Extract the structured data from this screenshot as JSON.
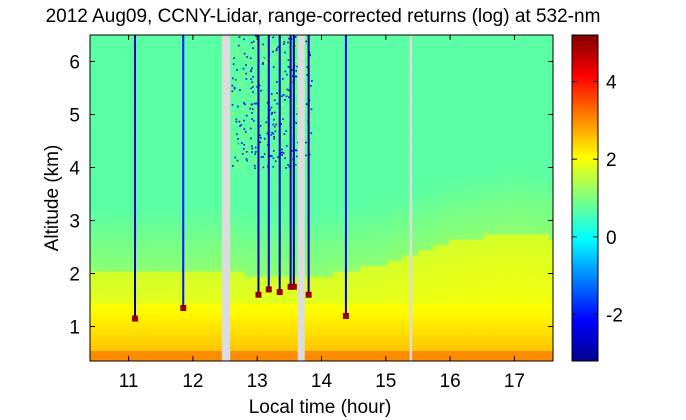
{
  "chart_data": [
    {
      "type": "heatmap",
      "title": "2012 Aug09, CCNY-Lidar, range-corrected returns (log) at 532-nm",
      "xlabel": "Local time (hour)",
      "ylabel": "Altitude (km)",
      "xlim": [
        10.4,
        17.6
      ],
      "ylim": [
        0.35,
        6.5
      ],
      "xticks": [
        "11",
        "12",
        "13",
        "14",
        "15",
        "16",
        "17"
      ],
      "yticks": [
        "1",
        "2",
        "3",
        "4",
        "5",
        "6"
      ],
      "colorbar": {
        "range": [
          -3.2,
          5.2
        ],
        "ticks": [
          "-2",
          "0",
          "2",
          "4"
        ],
        "colormap": "jet"
      },
      "data_gaps_hours": [
        [
          12.45,
          12.58
        ],
        [
          13.63,
          13.74
        ],
        [
          15.37,
          15.41
        ]
      ],
      "layers": [
        {
          "name": "background_above_boundary_layer",
          "value": 0.7
        },
        {
          "name": "residual_layer_1p5_to_2km",
          "value": 1.7
        },
        {
          "name": "boundary_layer_below_1p5km",
          "value": 2.5
        },
        {
          "name": "near_surface",
          "value": 3.0
        }
      ],
      "boundary_layer_top_km": [
        {
          "t": 10.4,
          "h": 2.02
        },
        {
          "t": 11.0,
          "h": 2.0
        },
        {
          "t": 12.0,
          "h": 2.05
        },
        {
          "t": 12.45,
          "h": 2.1
        },
        {
          "t": 13.0,
          "h": 1.95
        },
        {
          "t": 14.0,
          "h": 1.95
        },
        {
          "t": 15.0,
          "h": 2.2
        },
        {
          "t": 16.0,
          "h": 2.6
        },
        {
          "t": 17.0,
          "h": 2.8
        },
        {
          "t": 17.55,
          "h": 2.7
        }
      ],
      "cloud_columns": [
        {
          "t": 11.1,
          "base_km": 1.15,
          "signal": -2.8
        },
        {
          "t": 11.85,
          "base_km": 1.35,
          "signal": -2.0
        },
        {
          "t": 13.02,
          "base_km": 1.6,
          "signal": -2.8
        },
        {
          "t": 13.18,
          "base_km": 1.7,
          "signal": -2.6
        },
        {
          "t": 13.35,
          "base_km": 1.65,
          "signal": -3.0
        },
        {
          "t": 13.52,
          "base_km": 1.75,
          "signal": -3.0
        },
        {
          "t": 13.57,
          "base_km": 1.75,
          "signal": -3.0
        },
        {
          "t": 13.8,
          "base_km": 1.6,
          "signal": -3.0
        },
        {
          "t": 14.38,
          "base_km": 1.2,
          "signal": -2.4
        }
      ],
      "cloud_base_values": {
        "signal": 5.0
      },
      "noise_region": {
        "t": [
          12.6,
          13.85
        ],
        "above_km": 4.0
      }
    }
  ]
}
